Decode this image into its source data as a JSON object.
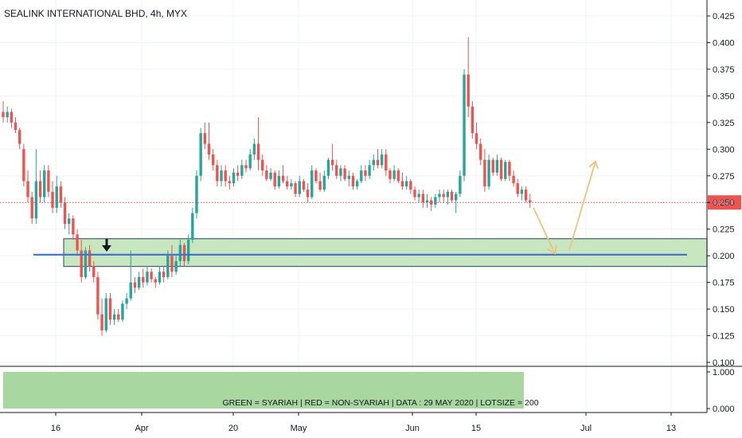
{
  "header": {
    "title": "SEALINK INTERNATIONAL BHD, 4h, MYX"
  },
  "colors": {
    "up": "#26a69a",
    "down": "#ef5350",
    "zone_fill": "#c8e6c0",
    "zone_border": "#3f5f8a",
    "support_line": "#3b6fd0",
    "projection": "#f0c27a",
    "price_line": "#ef5350",
    "price_label_bg": "#ef5350",
    "banner_fill": "#a8d8a0"
  },
  "chart_data": {
    "type": "candlestick",
    "title": "SEALINK INTERNATIONAL BHD, 4h, MYX",
    "ylim": [
      0.1,
      0.425
    ],
    "yticks": [
      "0.425",
      "0.400",
      "0.375",
      "0.350",
      "0.325",
      "0.300",
      "0.275",
      "0.250",
      "0.225",
      "0.200",
      "0.175",
      "0.150",
      "0.125",
      "0.100"
    ],
    "x_tick_labels": [
      "16",
      "Apr",
      "20",
      "May",
      "Jun",
      "15",
      "Jul",
      "13"
    ],
    "grid": true,
    "last_price": 0.25,
    "last_price_label": "0.250",
    "support_level": 0.201,
    "zone": [
      0.19,
      0.216
    ],
    "projection_path": [
      0.245,
      0.205,
      0.205,
      0.29
    ],
    "indicator": {
      "yticks": [
        "1.000",
        "0.000"
      ],
      "value": 1.0,
      "banner_text": "GREEN = SYARIAH  |  RED = NON-SYARIAH  |  DATA : 29 MAY 2020  |  LOTSIZE = 200"
    },
    "candles": [
      [
        0.335,
        0.345,
        0.325,
        0.33
      ],
      [
        0.33,
        0.34,
        0.325,
        0.335
      ],
      [
        0.335,
        0.338,
        0.32,
        0.325
      ],
      [
        0.325,
        0.33,
        0.315,
        0.318
      ],
      [
        0.318,
        0.32,
        0.3,
        0.305
      ],
      [
        0.3,
        0.305,
        0.265,
        0.27
      ],
      [
        0.27,
        0.28,
        0.25,
        0.255
      ],
      [
        0.255,
        0.26,
        0.23,
        0.235
      ],
      [
        0.235,
        0.3,
        0.23,
        0.27
      ],
      [
        0.27,
        0.28,
        0.25,
        0.255
      ],
      [
        0.255,
        0.285,
        0.25,
        0.28
      ],
      [
        0.28,
        0.285,
        0.255,
        0.26
      ],
      [
        0.26,
        0.27,
        0.24,
        0.245
      ],
      [
        0.245,
        0.275,
        0.24,
        0.265
      ],
      [
        0.265,
        0.27,
        0.245,
        0.25
      ],
      [
        0.25,
        0.255,
        0.225,
        0.23
      ],
      [
        0.23,
        0.24,
        0.22,
        0.235
      ],
      [
        0.235,
        0.238,
        0.215,
        0.22
      ],
      [
        0.22,
        0.225,
        0.2,
        0.205
      ],
      [
        0.205,
        0.215,
        0.175,
        0.18
      ],
      [
        0.18,
        0.208,
        0.178,
        0.205
      ],
      [
        0.205,
        0.21,
        0.185,
        0.19
      ],
      [
        0.19,
        0.195,
        0.175,
        0.18
      ],
      [
        0.18,
        0.185,
        0.14,
        0.145
      ],
      [
        0.145,
        0.16,
        0.125,
        0.13
      ],
      [
        0.13,
        0.165,
        0.128,
        0.16
      ],
      [
        0.16,
        0.165,
        0.135,
        0.14
      ],
      [
        0.14,
        0.15,
        0.135,
        0.145
      ],
      [
        0.145,
        0.15,
        0.138,
        0.14
      ],
      [
        0.14,
        0.158,
        0.138,
        0.155
      ],
      [
        0.155,
        0.165,
        0.15,
        0.16
      ],
      [
        0.16,
        0.205,
        0.158,
        0.175
      ],
      [
        0.175,
        0.18,
        0.165,
        0.17
      ],
      [
        0.17,
        0.185,
        0.168,
        0.18
      ],
      [
        0.18,
        0.188,
        0.17,
        0.175
      ],
      [
        0.175,
        0.19,
        0.172,
        0.185
      ],
      [
        0.185,
        0.188,
        0.175,
        0.178
      ],
      [
        0.178,
        0.18,
        0.17,
        0.175
      ],
      [
        0.175,
        0.19,
        0.173,
        0.185
      ],
      [
        0.185,
        0.19,
        0.175,
        0.18
      ],
      [
        0.18,
        0.205,
        0.178,
        0.2
      ],
      [
        0.2,
        0.21,
        0.18,
        0.185
      ],
      [
        0.185,
        0.2,
        0.182,
        0.195
      ],
      [
        0.195,
        0.215,
        0.19,
        0.21
      ],
      [
        0.21,
        0.212,
        0.19,
        0.195
      ],
      [
        0.195,
        0.22,
        0.192,
        0.215
      ],
      [
        0.215,
        0.245,
        0.212,
        0.24
      ],
      [
        0.24,
        0.28,
        0.235,
        0.275
      ],
      [
        0.275,
        0.32,
        0.27,
        0.315
      ],
      [
        0.315,
        0.325,
        0.3,
        0.305
      ],
      [
        0.305,
        0.325,
        0.29,
        0.295
      ],
      [
        0.295,
        0.3,
        0.28,
        0.285
      ],
      [
        0.285,
        0.29,
        0.265,
        0.27
      ],
      [
        0.27,
        0.285,
        0.265,
        0.28
      ],
      [
        0.28,
        0.285,
        0.265,
        0.27
      ],
      [
        0.27,
        0.275,
        0.262,
        0.268
      ],
      [
        0.268,
        0.282,
        0.265,
        0.278
      ],
      [
        0.278,
        0.285,
        0.27,
        0.275
      ],
      [
        0.275,
        0.29,
        0.272,
        0.285
      ],
      [
        0.285,
        0.29,
        0.278,
        0.282
      ],
      [
        0.282,
        0.3,
        0.28,
        0.295
      ],
      [
        0.295,
        0.31,
        0.29,
        0.305
      ],
      [
        0.305,
        0.33,
        0.28,
        0.29
      ],
      [
        0.29,
        0.295,
        0.275,
        0.28
      ],
      [
        0.28,
        0.285,
        0.27,
        0.272
      ],
      [
        0.272,
        0.282,
        0.27,
        0.278
      ],
      [
        0.278,
        0.28,
        0.262,
        0.265
      ],
      [
        0.265,
        0.28,
        0.263,
        0.275
      ],
      [
        0.275,
        0.285,
        0.268,
        0.27
      ],
      [
        0.27,
        0.275,
        0.262,
        0.265
      ],
      [
        0.265,
        0.272,
        0.262,
        0.268
      ],
      [
        0.268,
        0.27,
        0.255,
        0.258
      ],
      [
        0.258,
        0.275,
        0.255,
        0.27
      ],
      [
        0.27,
        0.272,
        0.26,
        0.262
      ],
      [
        0.262,
        0.268,
        0.25,
        0.255
      ],
      [
        0.255,
        0.285,
        0.253,
        0.28
      ],
      [
        0.28,
        0.282,
        0.268,
        0.27
      ],
      [
        0.27,
        0.278,
        0.26,
        0.262
      ],
      [
        0.262,
        0.28,
        0.26,
        0.275
      ],
      [
        0.275,
        0.292,
        0.272,
        0.29
      ],
      [
        0.29,
        0.305,
        0.28,
        0.285
      ],
      [
        0.285,
        0.29,
        0.272,
        0.275
      ],
      [
        0.275,
        0.285,
        0.27,
        0.282
      ],
      [
        0.282,
        0.285,
        0.27,
        0.272
      ],
      [
        0.272,
        0.28,
        0.265,
        0.275
      ],
      [
        0.275,
        0.278,
        0.262,
        0.265
      ],
      [
        0.265,
        0.272,
        0.262,
        0.27
      ],
      [
        0.27,
        0.285,
        0.268,
        0.28
      ],
      [
        0.28,
        0.285,
        0.27,
        0.275
      ],
      [
        0.275,
        0.29,
        0.272,
        0.285
      ],
      [
        0.285,
        0.295,
        0.28,
        0.29
      ],
      [
        0.29,
        0.3,
        0.282,
        0.285
      ],
      [
        0.285,
        0.3,
        0.282,
        0.295
      ],
      [
        0.295,
        0.3,
        0.275,
        0.28
      ],
      [
        0.28,
        0.282,
        0.268,
        0.272
      ],
      [
        0.272,
        0.285,
        0.27,
        0.28
      ],
      [
        0.28,
        0.282,
        0.268,
        0.27
      ],
      [
        0.27,
        0.278,
        0.262,
        0.265
      ],
      [
        0.265,
        0.275,
        0.262,
        0.27
      ],
      [
        0.27,
        0.272,
        0.258,
        0.262
      ],
      [
        0.262,
        0.265,
        0.252,
        0.255
      ],
      [
        0.255,
        0.262,
        0.25,
        0.258
      ],
      [
        0.258,
        0.262,
        0.245,
        0.25
      ],
      [
        0.25,
        0.258,
        0.245,
        0.252
      ],
      [
        0.252,
        0.255,
        0.242,
        0.248
      ],
      [
        0.248,
        0.258,
        0.245,
        0.255
      ],
      [
        0.255,
        0.262,
        0.25,
        0.258
      ],
      [
        0.258,
        0.262,
        0.25,
        0.255
      ],
      [
        0.255,
        0.262,
        0.248,
        0.26
      ],
      [
        0.26,
        0.262,
        0.25,
        0.252
      ],
      [
        0.252,
        0.26,
        0.24,
        0.258
      ],
      [
        0.258,
        0.28,
        0.255,
        0.275
      ],
      [
        0.275,
        0.375,
        0.27,
        0.37
      ],
      [
        0.37,
        0.405,
        0.33,
        0.34
      ],
      [
        0.34,
        0.345,
        0.31,
        0.315
      ],
      [
        0.315,
        0.325,
        0.3,
        0.305
      ],
      [
        0.305,
        0.31,
        0.285,
        0.29
      ],
      [
        0.29,
        0.3,
        0.26,
        0.265
      ],
      [
        0.265,
        0.295,
        0.262,
        0.29
      ],
      [
        0.29,
        0.292,
        0.275,
        0.278
      ],
      [
        0.278,
        0.295,
        0.275,
        0.29
      ],
      [
        0.29,
        0.292,
        0.27,
        0.272
      ],
      [
        0.272,
        0.29,
        0.27,
        0.288
      ],
      [
        0.288,
        0.29,
        0.27,
        0.275
      ],
      [
        0.275,
        0.28,
        0.265,
        0.268
      ],
      [
        0.268,
        0.272,
        0.255,
        0.258
      ],
      [
        0.258,
        0.265,
        0.252,
        0.262
      ],
      [
        0.262,
        0.265,
        0.25,
        0.252
      ],
      [
        0.252,
        0.258,
        0.245,
        0.25
      ]
    ]
  }
}
